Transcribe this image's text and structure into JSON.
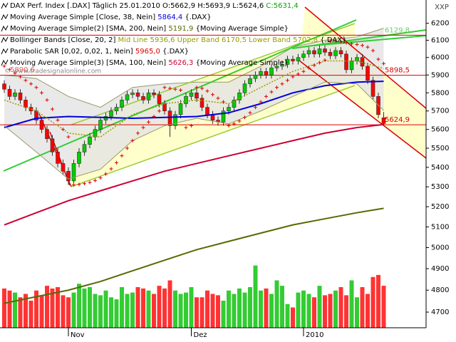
{
  "chart_data": {
    "type": "candlestick",
    "corner_label": "XXP",
    "watermark": "© www.tradesignalonline.com",
    "legend": [
      [
        {
          "text": "DAX Perf. Index [.DAX]  Täglich 25.01.2010 ",
          "color": "#000000"
        },
        {
          "text": "O:5662,9 H:5693,9 L:5624,6 ",
          "color": "#000000"
        },
        {
          "text": "C:5631,4",
          "color": "#00aa00"
        }
      ],
      [
        {
          "text": "Moving Average Simple [Close, 38, Nein] ",
          "color": "#000000"
        },
        {
          "text": "5864,4",
          "color": "#0000dd"
        },
        {
          "text": " {.DAX}",
          "color": "#000000"
        }
      ],
      [
        {
          "text": "Moving Average Simple(2) [SMA, 200, Nein] ",
          "color": "#000000"
        },
        {
          "text": "5191,9",
          "color": "#556b00"
        },
        {
          "text": " {Moving Average Simple}",
          "color": "#000000"
        }
      ],
      [
        {
          "text": "Bollinger Bands [Close, 20, 2] ",
          "color": "#000000"
        },
        {
          "text": "Mid Line 5936,6 Upper Band 6170,5 Lower Band 5702,8",
          "color": "#999900"
        },
        {
          "text": " {.DAX}",
          "color": "#000000"
        }
      ],
      [
        {
          "text": "Parabolic SAR [0,02, 0,02, 1, Nein] ",
          "color": "#000000"
        },
        {
          "text": "5965,0",
          "color": "#dd0000"
        },
        {
          "text": " {.DAX}",
          "color": "#000000"
        }
      ],
      [
        {
          "text": "Moving Average Simple(3) [SMA, 100, Nein] ",
          "color": "#000000"
        },
        {
          "text": "5626,3",
          "color": "#cc0033"
        },
        {
          "text": " {Moving Average Simple}",
          "color": "#000000"
        }
      ]
    ],
    "annotations": [
      {
        "text": "5890,6",
        "color": "#ff5555"
      }
    ],
    "categories": [
      null,
      null,
      null,
      null,
      null,
      null,
      null,
      null,
      null,
      null,
      null,
      null,
      "Nov",
      null,
      null,
      null,
      null,
      null,
      null,
      null,
      null,
      null,
      null,
      null,
      null,
      null,
      null,
      null,
      null,
      null,
      null,
      null,
      null,
      null,
      null,
      "Dez",
      null,
      null,
      null,
      null,
      null,
      null,
      null,
      null,
      null,
      null,
      null,
      null,
      null,
      null,
      null,
      null,
      null,
      null,
      null,
      null,
      "2010",
      null,
      null,
      null,
      null,
      null,
      null,
      null,
      null,
      null,
      null,
      null,
      null,
      null,
      null,
      null
    ],
    "open": [
      5850,
      5820,
      5780,
      5800,
      5760,
      5720,
      5700,
      5650,
      5600,
      5550,
      5480,
      5420,
      5380,
      5330,
      5420,
      5480,
      5520,
      5560,
      5600,
      5650,
      5670,
      5700,
      5720,
      5760,
      5790,
      5800,
      5780,
      5760,
      5800,
      5790,
      5740,
      5700,
      5620,
      5680,
      5740,
      5780,
      5800,
      5770,
      5720,
      5680,
      5650,
      5640,
      5700,
      5720,
      5760,
      5800,
      5850,
      5880,
      5900,
      5920,
      5900,
      5940,
      5950,
      5960,
      5990,
      5980,
      6000,
      6020,
      6040,
      6020,
      6050,
      6030,
      6010,
      6040,
      6020,
      5930,
      5980,
      6000,
      5950,
      5870,
      5780,
      5662.9
    ],
    "high": [
      5870,
      5840,
      5820,
      5820,
      5780,
      5740,
      5720,
      5670,
      5620,
      5570,
      5500,
      5440,
      5400,
      5440,
      5500,
      5540,
      5580,
      5620,
      5670,
      5690,
      5720,
      5740,
      5780,
      5810,
      5820,
      5820,
      5800,
      5820,
      5820,
      5810,
      5760,
      5720,
      5700,
      5760,
      5800,
      5820,
      5820,
      5790,
      5740,
      5700,
      5670,
      5720,
      5740,
      5780,
      5820,
      5870,
      5900,
      5920,
      5940,
      5940,
      5960,
      5970,
      5980,
      6010,
      6010,
      6020,
      6040,
      6060,
      6060,
      6070,
      6070,
      6050,
      6060,
      6060,
      6040,
      6000,
      6020,
      6020,
      5970,
      5890,
      5800,
      5693.9
    ],
    "low": [
      5800,
      5760,
      5760,
      5740,
      5700,
      5680,
      5630,
      5580,
      5530,
      5460,
      5400,
      5360,
      5310,
      5310,
      5400,
      5460,
      5500,
      5540,
      5580,
      5630,
      5650,
      5680,
      5700,
      5740,
      5770,
      5760,
      5740,
      5740,
      5770,
      5720,
      5680,
      5560,
      5600,
      5660,
      5720,
      5760,
      5750,
      5700,
      5660,
      5630,
      5620,
      5620,
      5680,
      5700,
      5740,
      5780,
      5830,
      5860,
      5880,
      5880,
      5880,
      5920,
      5930,
      5940,
      5960,
      5960,
      5980,
      6000,
      6000,
      6000,
      6010,
      5990,
      5990,
      6000,
      5910,
      5910,
      5960,
      5930,
      5850,
      5760,
      5660,
      5624.6
    ],
    "close": [
      5820,
      5780,
      5800,
      5760,
      5720,
      5700,
      5650,
      5600,
      5550,
      5480,
      5420,
      5380,
      5330,
      5420,
      5480,
      5520,
      5560,
      5600,
      5650,
      5670,
      5700,
      5720,
      5760,
      5790,
      5800,
      5780,
      5760,
      5800,
      5790,
      5740,
      5700,
      5620,
      5680,
      5740,
      5780,
      5800,
      5770,
      5720,
      5680,
      5650,
      5640,
      5700,
      5720,
      5760,
      5800,
      5850,
      5880,
      5900,
      5920,
      5900,
      5940,
      5950,
      5960,
      5990,
      5980,
      6000,
      6020,
      6040,
      6020,
      6050,
      6030,
      6010,
      6040,
      6020,
      5930,
      5980,
      6000,
      5950,
      5870,
      5780,
      5680,
      5631.4
    ],
    "up_color": "#00cc00",
    "down_color": "#ff0000",
    "volume": [
      58,
      55,
      52,
      45,
      50,
      40,
      55,
      48,
      62,
      58,
      60,
      48,
      45,
      52,
      65,
      58,
      60,
      50,
      48,
      55,
      45,
      42,
      60,
      50,
      52,
      60,
      58,
      55,
      50,
      62,
      58,
      70,
      55,
      50,
      52,
      60,
      45,
      45,
      55,
      50,
      48,
      40,
      55,
      50,
      58,
      52,
      60,
      92,
      55,
      58,
      50,
      70,
      62,
      35,
      30,
      52,
      55,
      50,
      45,
      62,
      48,
      50,
      55,
      60,
      48,
      70,
      45,
      60,
      50,
      75,
      78,
      62
    ],
    "volume_lim": [
      0,
      100
    ],
    "volume_up_color": "#33cc33",
    "volume_down_color": "#ff3333",
    "series": [
      {
        "color": "#e4e4e4",
        "fill_to": 4,
        "x": [
          0,
          6,
          12,
          18,
          24,
          30,
          36,
          42,
          48,
          54,
          60,
          66,
          71
        ],
        "values": [
          5900,
          5880,
          5780,
          5720,
          5830,
          5850,
          5860,
          5860,
          5950,
          6060,
          6100,
          6120,
          6170.5
        ],
        "name": "Upper Band",
        "line_color": "#999966"
      },
      {
        "color": "#0000dd",
        "width": 2,
        "x": [
          0,
          6,
          12,
          18,
          24,
          30,
          36,
          42,
          48,
          54,
          60,
          66,
          71
        ],
        "values": [
          5610,
          5660,
          5670,
          5665,
          5660,
          5665,
          5670,
          5690,
          5740,
          5800,
          5840,
          5860,
          5864.4
        ]
      },
      {
        "color": "#556b00",
        "width": 2,
        "x": [
          0,
          6,
          12,
          18,
          24,
          30,
          36,
          42,
          48,
          54,
          60,
          66,
          71
        ],
        "values": [
          4740,
          4770,
          4800,
          4840,
          4890,
          4940,
          4990,
          5030,
          5070,
          5110,
          5140,
          5170,
          5191.9
        ]
      },
      {
        "color": "#999900",
        "width": 1.5,
        "dash": true,
        "x": [
          0,
          6,
          12,
          18,
          24,
          30,
          36,
          42,
          48,
          54,
          60,
          66,
          71
        ],
        "values": [
          5760,
          5700,
          5580,
          5560,
          5680,
          5740,
          5760,
          5740,
          5830,
          5920,
          5980,
          5980,
          5936.6
        ],
        "name": "Mid Line"
      },
      {
        "color": "#999966",
        "width": 1,
        "x": [
          0,
          6,
          12,
          18,
          24,
          30,
          36,
          42,
          48,
          54,
          60,
          66,
          71
        ],
        "values": [
          5620,
          5480,
          5340,
          5390,
          5540,
          5620,
          5660,
          5630,
          5700,
          5780,
          5860,
          5850,
          5702.8
        ],
        "name": "Lower Band"
      },
      {
        "color": "#dd0000",
        "marker": "cross",
        "x": [
          0,
          1,
          2,
          3,
          4,
          5,
          6,
          7,
          8,
          9,
          10,
          11,
          12,
          13,
          14,
          15,
          16,
          17,
          18,
          19,
          20,
          21,
          22,
          23,
          24,
          25,
          26,
          27,
          28,
          29,
          30,
          31,
          32,
          33,
          34,
          35,
          36,
          37,
          38,
          39,
          40,
          41,
          42,
          43,
          44,
          45,
          46,
          47,
          48,
          49,
          50,
          51,
          52,
          53,
          54,
          55,
          56,
          57,
          58,
          59,
          60,
          61,
          62,
          63,
          64,
          65,
          66,
          67,
          68,
          69,
          70,
          71
        ],
        "values": [
          5950,
          5930,
          5910,
          5890,
          5870,
          5850,
          5830,
          5800,
          5760,
          5710,
          5650,
          5600,
          5560,
          5310,
          5312,
          5316,
          5322,
          5332,
          5346,
          5366,
          5392,
          5424,
          5460,
          5500,
          5540,
          5580,
          5610,
          5640,
          5670,
          5700,
          5830,
          5825,
          5820,
          5815,
          5610,
          5620,
          5830,
          5825,
          5810,
          5790,
          5770,
          5750,
          5620,
          5630,
          5645,
          5665,
          5690,
          5720,
          5750,
          5780,
          5805,
          5830,
          5850,
          5870,
          5890,
          5905,
          5920,
          5940,
          5955,
          5970,
          5985,
          6095,
          6095,
          6090,
          6085,
          6080,
          6075,
          6070,
          6060,
          6040,
          5990,
          5965
        ]
      },
      {
        "color": "#cc0033",
        "width": 2,
        "x": [
          0,
          6,
          12,
          18,
          24,
          30,
          36,
          42,
          48,
          54,
          60,
          66,
          71
        ],
        "values": [
          5110,
          5170,
          5230,
          5280,
          5330,
          5380,
          5420,
          5460,
          5500,
          5540,
          5580,
          5610,
          5626.3
        ]
      }
    ],
    "levels": [
      {
        "value": 6129.8,
        "label": "6129,8",
        "color": "#66cc66",
        "line_color": "#dd0000"
      },
      {
        "value": 5898.5,
        "label": "5898,5",
        "color": "#dd0000",
        "line_color": "#dd0000"
      },
      {
        "value": 5624.9,
        "label": "5624,9",
        "color": "#dd0000",
        "line_color": "#dd0000"
      }
    ],
    "log": true,
    "ylim": [
      4630,
      6340
    ],
    "yticks": [
      4700,
      4800,
      4900,
      5000,
      5100,
      5200,
      5300,
      5400,
      5500,
      5600,
      5700,
      5800,
      5900,
      6000,
      6100,
      6200
    ]
  }
}
